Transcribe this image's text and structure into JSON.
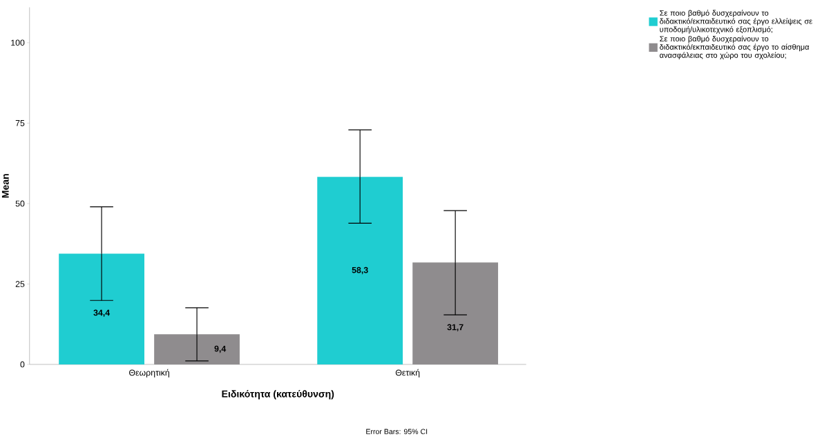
{
  "chart_data": {
    "type": "bar",
    "xlabel": "Ειδικότητα (κατεύθυνση)",
    "ylabel": "Mean",
    "categories": [
      "Θεωρητική",
      "Θετική"
    ],
    "series": [
      {
        "name": "Σε ποιο βαθμό δυσχεραίνουν το διδακτικό/εκπαιδευτικό σας έργο ελλείψεις σε υποδομή/υλικοτεχνικό εξοπλισμό;",
        "color": "#1fcdd1",
        "values": [
          34.4,
          58.3
        ],
        "errors": [
          [
            19.9,
            49.0
          ],
          [
            43.9,
            72.9
          ]
        ],
        "value_labels": [
          "34,4",
          "58,3"
        ]
      },
      {
        "name": "Σε ποιο βαθμό δυσχεραίνουν το διδακτικό/εκπαιδευτικό σας έργο το αίσθημα ανασφάλειας  στο χώρο του σχολείου;",
        "color": "#8f8c8e",
        "values": [
          9.4,
          31.7
        ],
        "errors": [
          [
            1.1,
            17.6
          ],
          [
            15.4,
            47.8
          ]
        ],
        "value_labels": [
          "9,4",
          "31,7"
        ]
      }
    ],
    "ylim": [
      0,
      111
    ],
    "yticks": [
      0,
      25,
      50,
      75,
      100
    ],
    "grid": false,
    "legend": "top right",
    "annotations": [
      "Error Bars: 95% CI"
    ]
  }
}
